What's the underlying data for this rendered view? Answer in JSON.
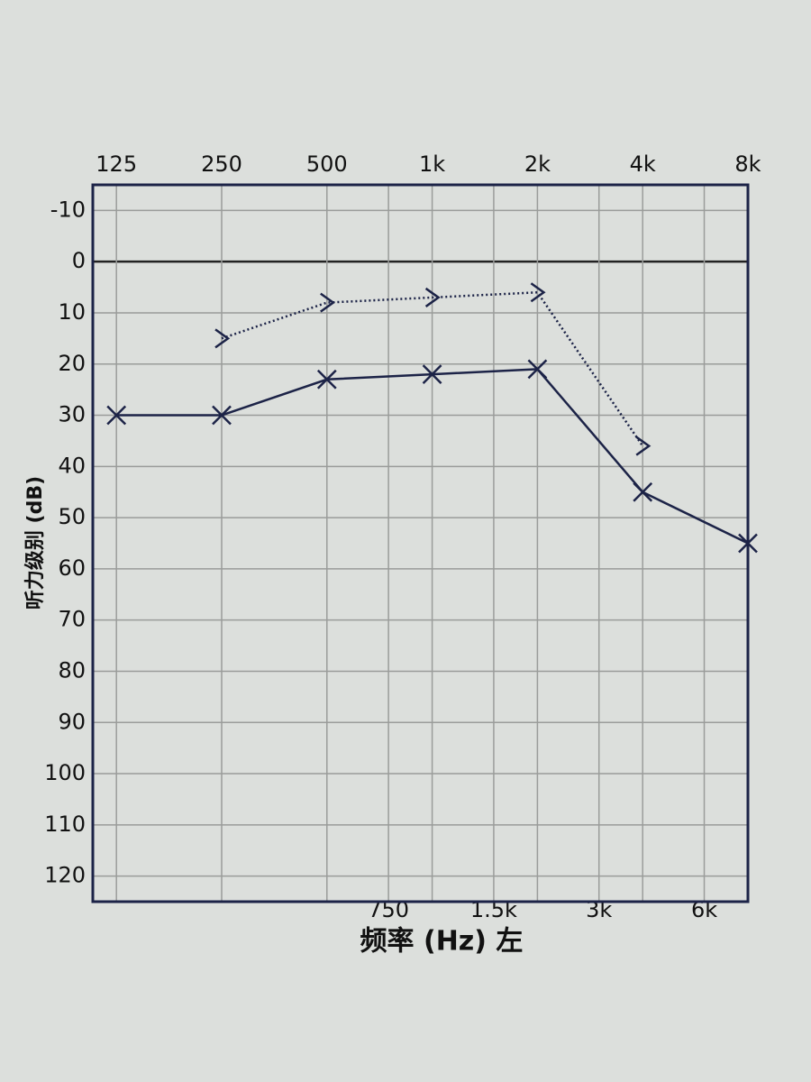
{
  "chart_data": {
    "type": "line",
    "x_label": "频率 (Hz) 左",
    "y_label": "听力级别 (dB)",
    "x": [
      125,
      250,
      500,
      1000,
      2000,
      4000,
      8000
    ],
    "xscale": "log",
    "xlim": [
      107,
      8000
    ],
    "xticks_top": [
      125,
      250,
      500,
      {
        "value": 1000,
        "label": "1k"
      },
      {
        "value": 2000,
        "label": "2k"
      },
      {
        "value": 4000,
        "label": "4k"
      },
      {
        "value": 8000,
        "label": "8k"
      }
    ],
    "xticks_bottom": [
      750,
      {
        "value": 1500,
        "label": "1.5k"
      },
      {
        "value": 3000,
        "label": "3k"
      },
      {
        "value": 6000,
        "label": "6k"
      }
    ],
    "ylim": [
      -15,
      125
    ],
    "y_inverted": true,
    "yticks": [
      -10,
      0,
      10,
      20,
      30,
      40,
      50,
      60,
      70,
      80,
      90,
      100,
      110,
      120
    ],
    "grid": true,
    "zero_line": true,
    "series": [
      {
        "color": "#1c2347",
        "marker": "x",
        "line_style": "solid",
        "values": [
          30,
          30,
          23,
          22,
          21,
          45,
          55
        ]
      },
      {
        "color": "#1c2347",
        "marker": ">",
        "line_style": "dotted",
        "values": [
          null,
          15,
          8,
          7,
          6,
          36,
          null
        ]
      }
    ]
  }
}
